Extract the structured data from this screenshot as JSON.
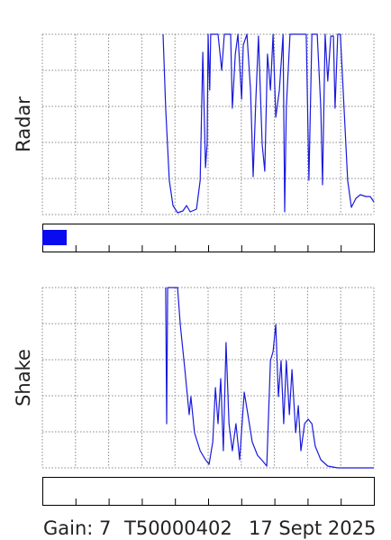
{
  "chart_data": [
    {
      "type": "line",
      "ylabel": "Radar",
      "color": "#1a1adc",
      "xlim": [
        0,
        100
      ],
      "xticks": [
        0,
        10,
        20,
        30,
        40,
        50,
        60,
        70,
        80,
        90,
        100
      ],
      "ylim": [
        0,
        100
      ],
      "yticks": [
        0,
        20,
        40,
        60,
        80,
        100
      ],
      "grid": true,
      "x": [
        36.4,
        37.2,
        38.3,
        39.4,
        40.8,
        42.4,
        43.5,
        44.6,
        46.5,
        47.6,
        48.4,
        49.2,
        49.7,
        50,
        50.5,
        50.8,
        53,
        54.1,
        54.9,
        56.8,
        57.3,
        58.2,
        59,
        60.1,
        60.6,
        61.7,
        62.8,
        63.6,
        64.4,
        65.2,
        66.3,
        67.1,
        67.9,
        68.8,
        69.6,
        70.4,
        71.5,
        72.6,
        73.1,
        73.6,
        74.7,
        79.6,
        80.4,
        81.3,
        82.9,
        84,
        84.5,
        85.3,
        86.1,
        87,
        87.8,
        88.3,
        89.1,
        89.9,
        91,
        92.1,
        93.2,
        94.6,
        95.9,
        97.6,
        98.9,
        100
      ],
      "values": [
        100,
        59,
        19,
        5,
        1,
        2,
        5,
        1.5,
        3,
        19,
        90,
        26,
        39,
        100,
        69,
        100,
        100,
        80,
        100,
        100,
        59,
        89,
        100,
        64,
        94,
        100,
        69,
        21,
        64,
        99,
        39,
        24,
        89,
        69,
        100,
        54,
        69,
        100,
        1.5,
        59,
        100,
        100,
        19,
        100,
        100,
        59,
        16.5,
        100,
        74,
        99,
        99,
        59,
        100,
        100,
        59,
        19,
        4,
        9,
        11,
        10,
        10,
        7
      ]
    },
    {
      "type": "line",
      "ylabel": "Shake",
      "color": "#1a1adc",
      "xlim": [
        0,
        100
      ],
      "xticks": [
        0,
        10,
        20,
        30,
        40,
        50,
        60,
        70,
        80,
        90,
        100
      ],
      "ylim": [
        0,
        100
      ],
      "yticks": [
        0,
        20,
        40,
        60,
        80,
        100
      ],
      "grid": true,
      "x": [
        37.2,
        37.5,
        37.8,
        40.8,
        41.6,
        43,
        44.3,
        44.8,
        45.9,
        47.6,
        49.2,
        50.3,
        51.4,
        52.2,
        53,
        53.8,
        54.6,
        55.4,
        56.3,
        57.3,
        58.4,
        59.5,
        60.9,
        62,
        63.3,
        64.9,
        66.6,
        67.7,
        68.8,
        69.6,
        70.4,
        71.2,
        72,
        72.8,
        73.6,
        74.5,
        75.3,
        76.4,
        77.2,
        78,
        79.1,
        80.2,
        81.3,
        82.3,
        84,
        86.1,
        89.1,
        100
      ],
      "values": [
        100,
        24.5,
        100,
        100,
        79.5,
        54.5,
        29.5,
        39.5,
        19.5,
        9.5,
        4.5,
        2,
        14.5,
        44.5,
        24.5,
        49.5,
        9.5,
        69.5,
        24.5,
        9.5,
        24.5,
        4.5,
        42,
        29.5,
        14.5,
        7,
        3.5,
        1,
        59.5,
        64.5,
        79.5,
        39.5,
        59.5,
        24.5,
        59.5,
        29.5,
        54.5,
        19.5,
        34.5,
        9.5,
        24.5,
        27,
        24.5,
        12,
        4.5,
        1,
        0,
        0
      ]
    }
  ],
  "footer": {
    "gain": "Gain: 7",
    "id": "T50000402",
    "date": "17 Sept 2025"
  }
}
